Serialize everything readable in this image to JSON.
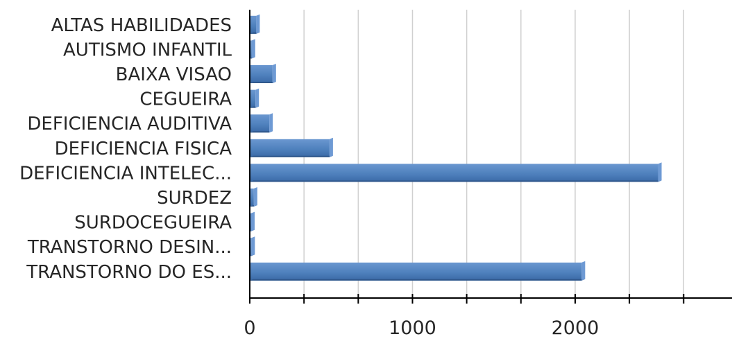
{
  "chart_data": {
    "type": "bar",
    "orientation": "horizontal",
    "categories": [
      "ALTAS HABILIDADES",
      "AUTISMO INFANTIL",
      "BAIXA VISAO",
      "CEGUEIRA",
      "DEFICIENCIA AUDITIVA",
      "DEFICIENCIA FISICA",
      "DEFICIENCIA INTELEC...",
      "SURDEZ",
      "SURDOCEGUEIRA",
      "TRANSTORNO DESIN...",
      "TRANSTORNO DO ES..."
    ],
    "values": [
      40,
      12,
      140,
      35,
      120,
      490,
      2510,
      25,
      8,
      10,
      2040
    ],
    "xlim": [
      0,
      2900
    ],
    "major_ticks": [
      0,
      1000,
      2000
    ],
    "minor_ticks": [
      333.3,
      666.7,
      1333.3,
      1666.7,
      2333.3,
      2666.7
    ],
    "xlabel": "",
    "ylabel": "",
    "grid": "vertical",
    "legend": "none",
    "bar_color": "#4f81bd",
    "bar_side_color": "#6e9ad4",
    "bar_bottom_color": "#2f5588"
  }
}
